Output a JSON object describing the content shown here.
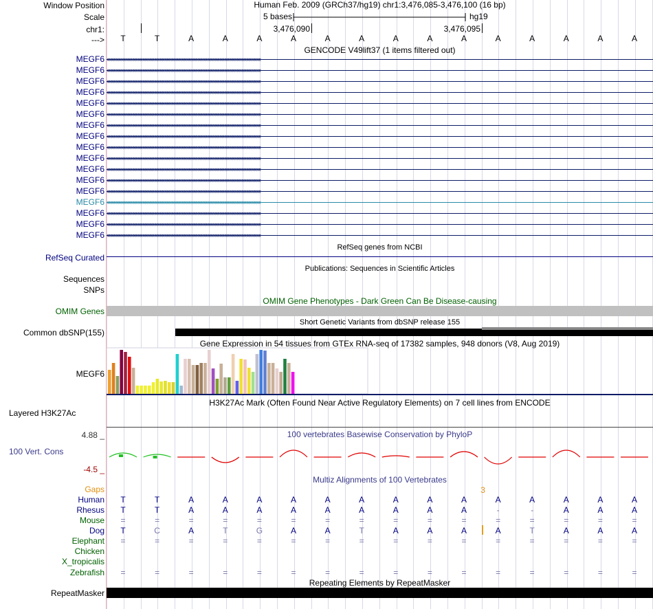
{
  "header": {
    "window_position_label": "Window Position",
    "window_position_text": "Human Feb. 2009 (GRCh37/hg19)   chr1:3,476,085-3,476,100 (16 bp)",
    "scale_label": "Scale",
    "scale_text": "5 bases",
    "assembly": "hg19",
    "chrom_label": "chr1:",
    "coord_1": "3,476,090",
    "coord_2": "3,476,095",
    "strand_label": "--->"
  },
  "bases": [
    "T",
    "T",
    "A",
    "A",
    "A",
    "A",
    "A",
    "A",
    "A",
    "A",
    "A",
    "A",
    "A",
    "A",
    "A",
    "A"
  ],
  "tracks": {
    "gencode": {
      "title": "GENCODE V49lift37 (1 items filtered out)",
      "labels": [
        "MEGF6",
        "MEGF6",
        "MEGF6",
        "MEGF6",
        "MEGF6",
        "MEGF6",
        "MEGF6",
        "MEGF6",
        "MEGF6",
        "MEGF6",
        "MEGF6",
        "MEGF6",
        "MEGF6",
        "MEGF6",
        "MEGF6",
        "MEGF6",
        "MEGF6"
      ],
      "selected_index": 13,
      "color": "#0b1b66",
      "selected_color": "#2a8aa8"
    },
    "refseq": {
      "title": "RefSeq genes from NCBI",
      "label": "RefSeq Curated"
    },
    "publications": {
      "title": "Publications: Sequences in Scientific Articles",
      "labels": [
        "Sequences",
        "SNPs"
      ]
    },
    "omim": {
      "title": "OMIM Gene Phenotypes - Dark Green Can Be Disease-causing",
      "label": "OMIM Genes",
      "color": "#c0c0c0"
    },
    "dbsnp": {
      "title": "Short Genetic Variants from dbSNP release 155",
      "label": "Common dbSNP(155)"
    },
    "gtex": {
      "title": "Gene Expression in 54 tissues from GTEx RNA-seq of 17382 samples, 948 donors (V8, Aug 2019)",
      "label": "MEGF6",
      "bar_colors": [
        "#f0a030",
        "#e08020",
        "#88a060",
        "#800040",
        "#a02040",
        "#e01010",
        "#c8b098",
        "#f0f030",
        "#f0f030",
        "#f0f030",
        "#f0f030",
        "#f0f030",
        "#e8e830",
        "#e8e830",
        "#e0e030",
        "#f0e030",
        "#d8d030",
        "#20d0d0",
        "#a0b8d0",
        "#e8d0d0",
        "#d8c0b0",
        "#c8b098",
        "#806040",
        "#a08060",
        "#c8b098",
        "#e8d0d0",
        "#a050c0",
        "#80a030",
        "#c8b098",
        "#b0a890",
        "#60a040",
        "#f0d0b0",
        "#6060f0",
        "#f0e030",
        "#f0c0c0",
        "#f0e030",
        "#a0e090",
        "#c0c0d0",
        "#4080e0",
        "#6080d0",
        "#c8b098",
        "#c8b098",
        "#e8d0d0",
        "#c0a890",
        "#208040",
        "#c8b098",
        "#f010f0"
      ],
      "bar_levels": [
        0.55,
        0.7,
        0.4,
        1.0,
        0.95,
        0.85,
        0.6,
        0.18,
        0.18,
        0.18,
        0.18,
        0.26,
        0.34,
        0.28,
        0.3,
        0.26,
        0.26,
        0.9,
        0.18,
        0.8,
        0.8,
        0.65,
        0.65,
        0.7,
        0.7,
        1.0,
        0.58,
        0.34,
        0.68,
        0.38,
        0.38,
        0.9,
        0.3,
        0.8,
        0.78,
        0.6,
        0.5,
        0.9,
        1.0,
        0.98,
        0.7,
        0.7,
        0.58,
        0.5,
        0.8,
        0.7,
        0.5
      ]
    },
    "h3k27ac": {
      "title": "H3K27Ac Mark (Often Found Near Active Regulatory Elements) on 7 cell lines from ENCODE",
      "label": "Layered H3K27Ac"
    },
    "conservation": {
      "title": "100 vertebrates Basewise Conservation by PhyloP",
      "label": "100 Vert. Cons",
      "max_label": "4.88 _",
      "min_label": "-4.5 _",
      "max": 4.88,
      "min": -4.5,
      "scores": [
        0.3,
        0.2,
        0.0,
        -0.4,
        0.0,
        0.5,
        0.0,
        0.3,
        0.1,
        0.0,
        0.4,
        -0.5,
        0.0,
        0.5,
        0.0,
        0.0
      ],
      "positive_color": "#20c020",
      "negative_color": "#e00000"
    },
    "multiz": {
      "title": "Multiz Alignments of 100 Vertebrates",
      "gaps_label": "Gaps",
      "gap_count": "3",
      "species": [
        {
          "name": "Human",
          "color": "#000080",
          "seq": [
            "T",
            "T",
            "A",
            "A",
            "A",
            "A",
            "A",
            "A",
            "A",
            "A",
            "A",
            "A",
            "A",
            "A",
            "A",
            "A"
          ]
        },
        {
          "name": "Rhesus",
          "color": "#000080",
          "seq": [
            "T",
            "T",
            "A",
            "A",
            "A",
            "A",
            "A",
            "A",
            "A",
            "A",
            "A",
            "-",
            "-",
            "A",
            "A",
            "A"
          ]
        },
        {
          "name": "Mouse",
          "color": "#006000",
          "seq": [
            "=",
            "=",
            "=",
            "=",
            "=",
            "=",
            "=",
            "=",
            "=",
            "=",
            "=",
            "=",
            "=",
            "=",
            "=",
            "="
          ]
        },
        {
          "name": "Dog",
          "color": "#000080",
          "seq": [
            "T",
            "C",
            "A",
            "T",
            "G",
            "A",
            "A",
            "T",
            "A",
            "A",
            "A",
            "A",
            "T",
            "A",
            "A",
            "A"
          ]
        },
        {
          "name": "Elephant",
          "color": "#006000",
          "seq": [
            "=",
            "=",
            "=",
            "=",
            "=",
            "=",
            "=",
            "=",
            "=",
            "=",
            "=",
            "=",
            "=",
            "=",
            "=",
            "="
          ]
        },
        {
          "name": "Chicken",
          "color": "#006000",
          "seq": [
            "",
            "",
            "",
            "",
            "",
            "",
            "",
            "",
            "",
            "",
            "",
            "",
            "",
            "",
            "",
            ""
          ]
        },
        {
          "name": "X_tropicalis",
          "color": "#006000",
          "seq": [
            "",
            "",
            "",
            "",
            "",
            "",
            "",
            "",
            "",
            "",
            "",
            "",
            "",
            "",
            "",
            ""
          ]
        },
        {
          "name": "Zebrafish",
          "color": "#006000",
          "seq": [
            "=",
            "=",
            "=",
            "=",
            "=",
            "=",
            "=",
            "=",
            "=",
            "=",
            "=",
            "=",
            "=",
            "=",
            "=",
            "="
          ]
        }
      ]
    },
    "repeatmasker": {
      "title": "Repeating Elements by RepeatMasker",
      "label": "RepeatMasker"
    }
  }
}
